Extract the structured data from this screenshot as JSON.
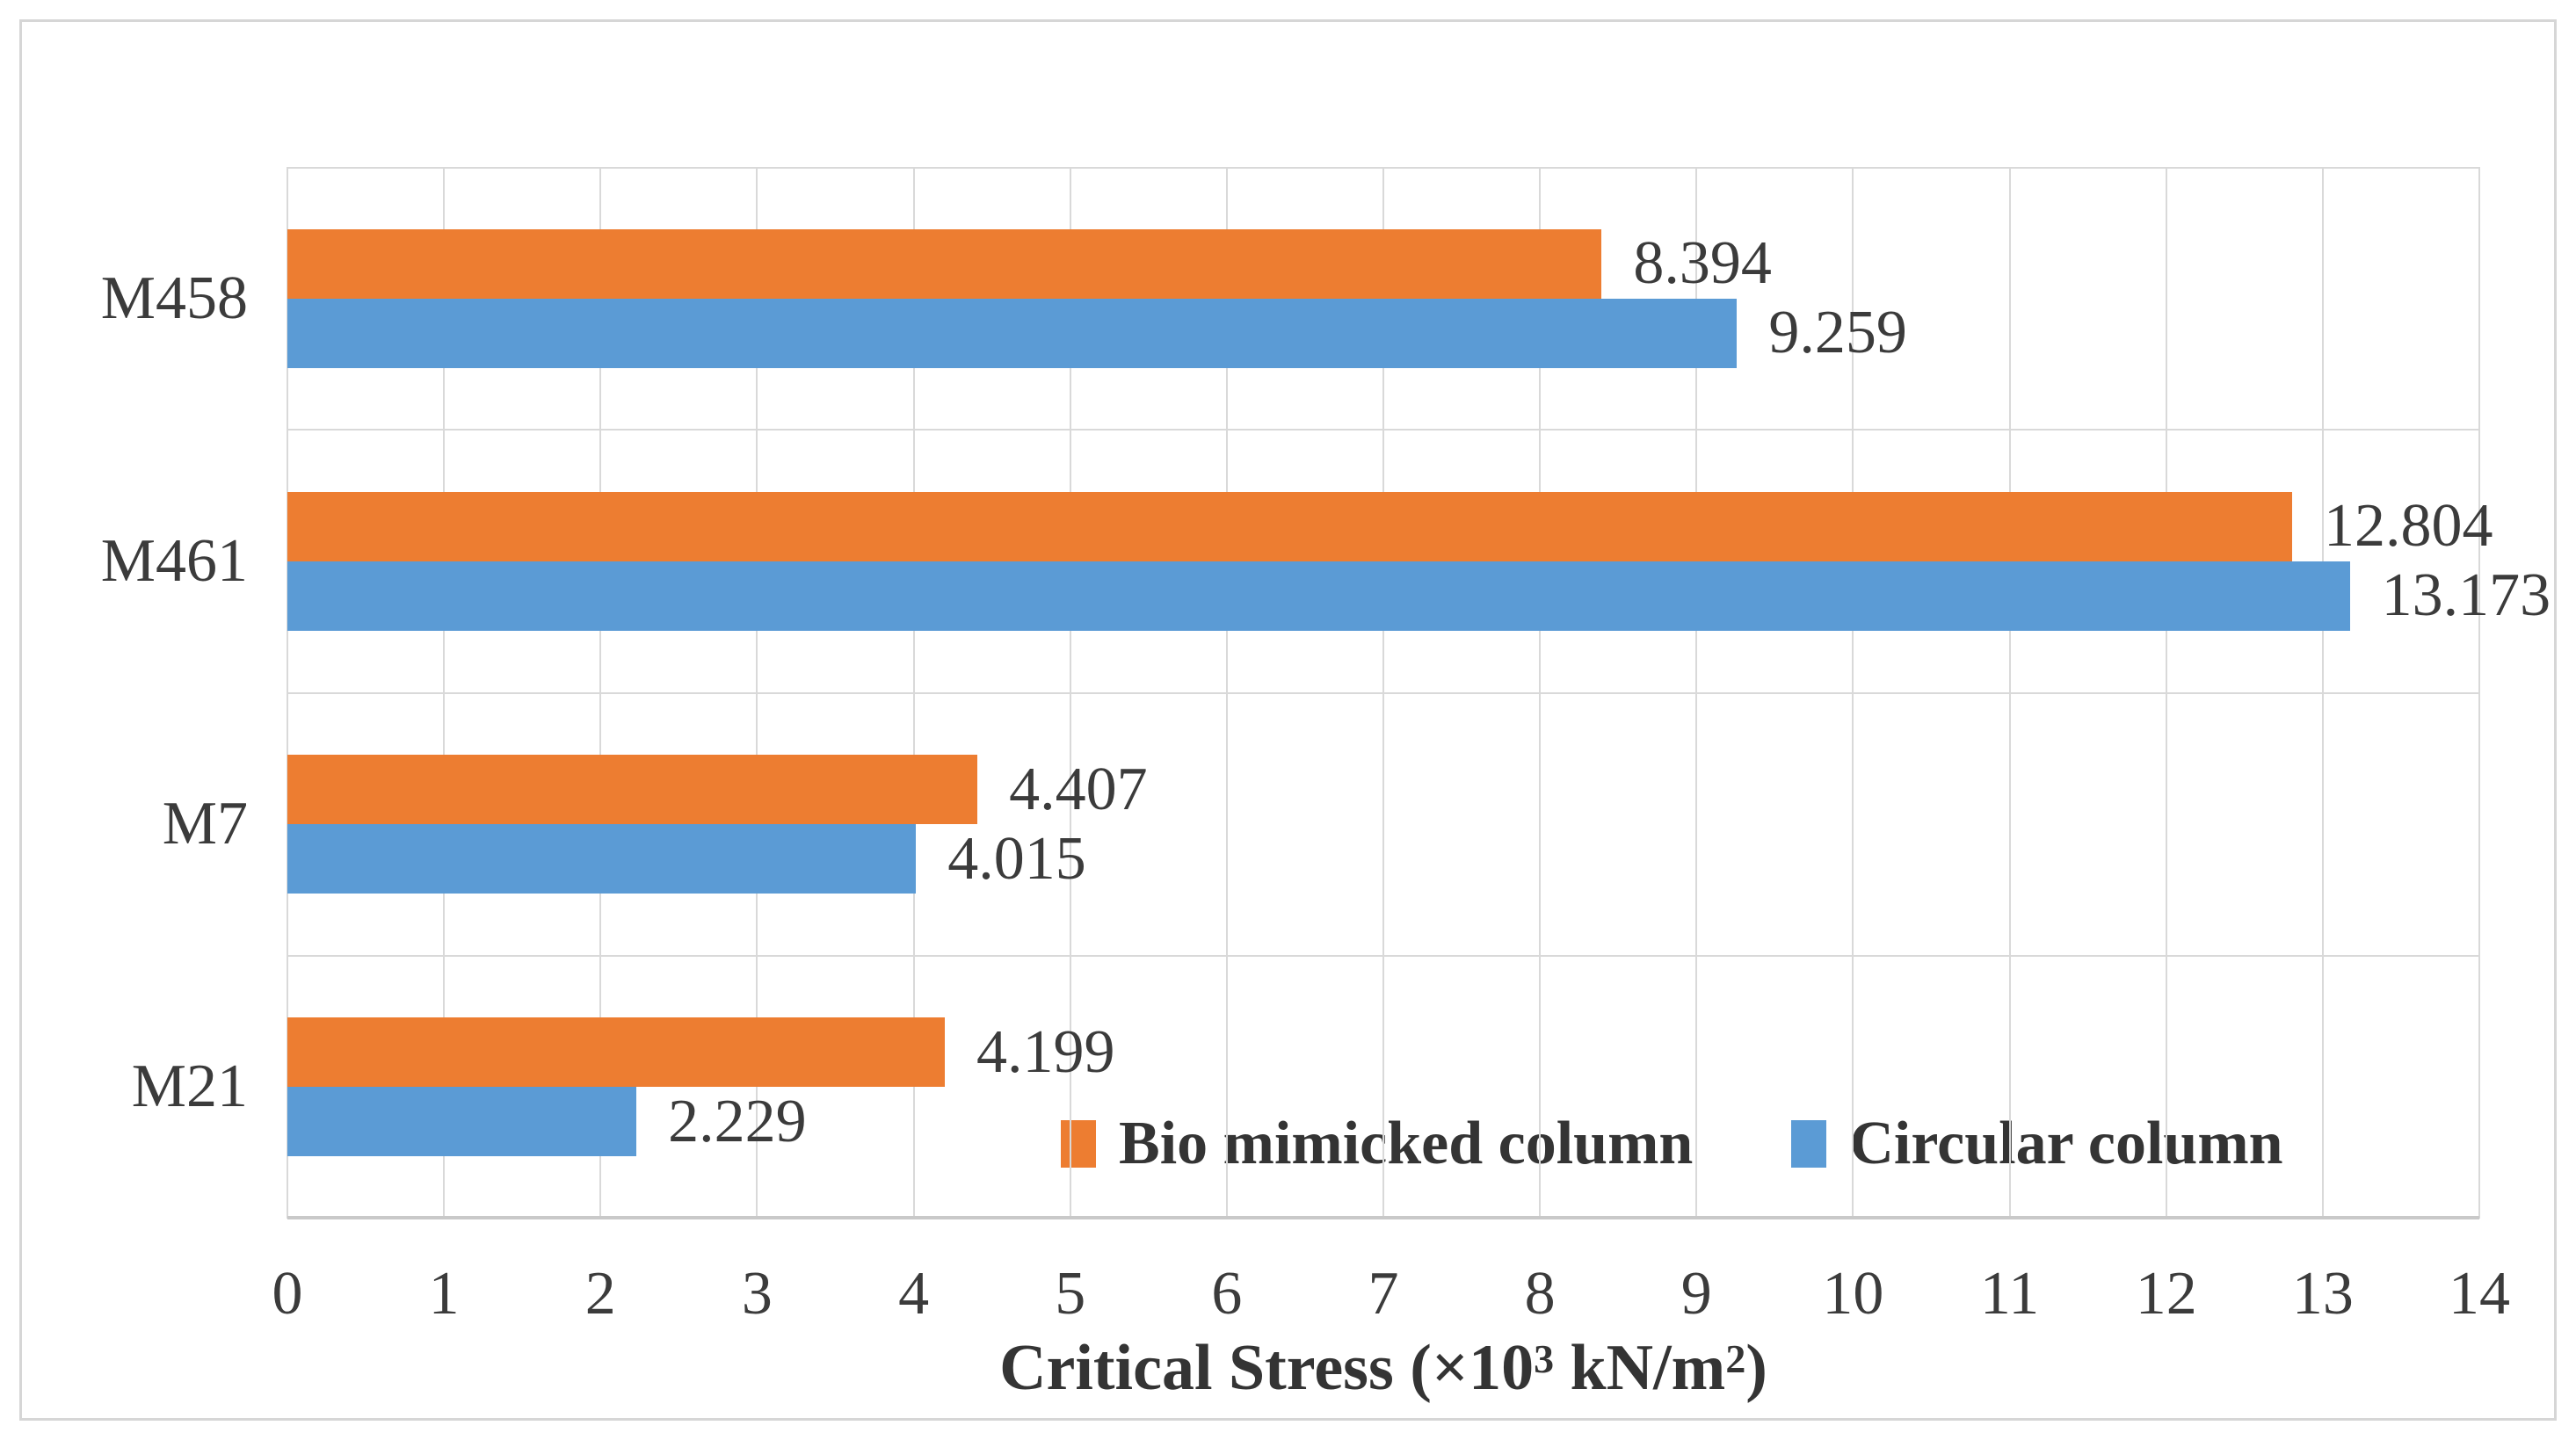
{
  "figure": {
    "background": "#ffffff",
    "border_color": "#d6d6d6"
  },
  "chart_data": {
    "type": "bar",
    "orientation": "horizontal",
    "categories": [
      "M458",
      "M461",
      "M7",
      "M21"
    ],
    "series": [
      {
        "name": "Bio mimicked column",
        "color": "#ED7D31",
        "values": [
          8.394,
          12.804,
          4.407,
          4.199
        ],
        "labels": [
          "8.394",
          "12.804",
          "4.407",
          "4.199"
        ]
      },
      {
        "name": "Circular column",
        "color": "#5B9BD5",
        "values": [
          9.259,
          13.173,
          4.015,
          2.229
        ],
        "labels": [
          "9.259",
          "13.173",
          "4.015",
          "2.229"
        ]
      }
    ],
    "x_ticks": [
      "0",
      "1",
      "2",
      "3",
      "4",
      "5",
      "6",
      "7",
      "8",
      "9",
      "10",
      "11",
      "12",
      "13",
      "14"
    ],
    "xlim": [
      0,
      14
    ],
    "grid": true,
    "gridline_color": "#d9d9d9",
    "axis_line_color": "#c9c9c9",
    "text_color": "#3b3b3b",
    "xlabel_text": "Critical Stress (×10³ kN/m²)",
    "xlabel_parts": {
      "prefix": "Critical Stress (×10",
      "exp1": "3",
      "mid": " kN/m",
      "exp2": "2",
      "suffix": ")"
    },
    "ylabel": "",
    "title": "",
    "legend_position": "inside-bottom",
    "legend_entries": [
      "Bio mimicked column",
      "Circular column"
    ]
  }
}
